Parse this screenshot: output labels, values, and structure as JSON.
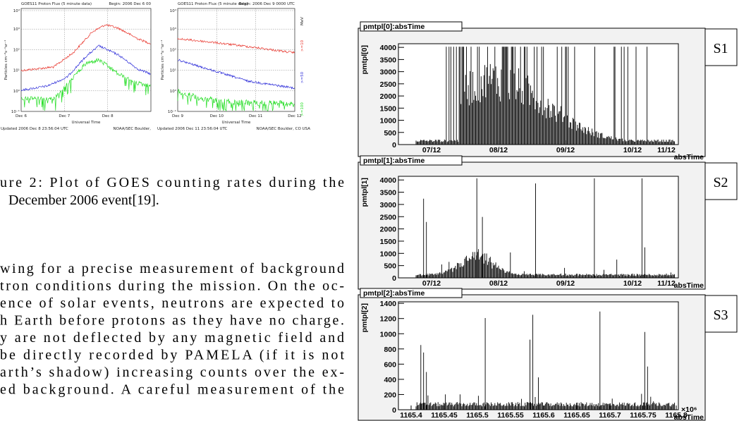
{
  "goes_figure": {
    "panels": [
      {
        "title": "GOES11 Proton Flux (5 minute data)",
        "begin": "Begin: 2006 Dec 6 00",
        "y_label": "Particles cm⁻²s⁻¹sr⁻¹",
        "y_ticks": [
          "10⁴",
          "10³",
          "10²",
          "10¹",
          "10⁰",
          "10⁻¹"
        ],
        "x_labels": [
          "Dec 6",
          "Dec 7",
          "Dec 8"
        ],
        "x_title": "Universal Time",
        "updated": "Updated 2006 Dec 8 23:56:04 UTC",
        "credit": "NOAA/SEC Boulder,"
      },
      {
        "title": "GOES11 Proton Flux (5 minute data)",
        "begin": "Begin: 2006 Dec 9 0000 UTC",
        "y_label": "Particles cm⁻²s⁻¹sr⁻¹",
        "y_ticks": [
          "10⁴",
          "10³",
          "10²",
          "10¹",
          "10⁰",
          "10⁻¹"
        ],
        "x_labels": [
          "Dec 9",
          "Dec 10",
          "Dec 11",
          "Dec 12"
        ],
        "x_title": "Universal Time",
        "updated": "Updated 2006 Dec 11 23:56:04 UTC",
        "credit": "NOAA/SEC Boulder, CO USA"
      }
    ],
    "unit": "MeV",
    "legend": [
      ">=10",
      ">=50",
      ">=100"
    ]
  },
  "caption": {
    "lines": [
      "ure 2: Plot of GOES counting rates during the",
      "December 2006 event[19]."
    ]
  },
  "body": {
    "lines": [
      "wing for a precise measurement of background",
      "tron conditions during the mission. On the oc-",
      "ence of solar events, neutrons are expected to",
      "h Earth before protons as they have no charge.",
      "y are not deflected by any magnetic field and",
      "be directly recorded by PAMELA (if it is not",
      "arth’s shadow) increasing counts over the ex-",
      "ed background. A careful measurement of the"
    ]
  },
  "root_panels": [
    {
      "title": "pmtpl[0]:absTime",
      "y_label": "pmtpl[0]",
      "y_ticks": [
        0,
        500,
        1000,
        1500,
        2000,
        2500,
        3000,
        3500,
        4000
      ],
      "x_ticks": [
        "07/12",
        "08/12",
        "09/12",
        "10/12",
        "11/12"
      ],
      "x_title": "absTime",
      "label": "S1"
    },
    {
      "title": "pmtpl[1]:absTime",
      "y_label": "pmtpl[1]",
      "y_ticks": [
        0,
        500,
        1000,
        1500,
        2000,
        2500,
        3000,
        3500,
        4000
      ],
      "x_ticks": [
        "07/12",
        "08/12",
        "09/12",
        "10/12",
        "11/12"
      ],
      "x_title": "absTime",
      "label": "S2"
    },
    {
      "title": "pmtpl[2]:absTime",
      "y_label": "pmtpl[2]",
      "y_ticks": [
        0,
        200,
        400,
        600,
        800,
        1000,
        1200,
        1400
      ],
      "x_ticks": [
        "1165.4",
        "1165.45",
        "1165.5",
        "1165.55",
        "1165.6",
        "1165.65",
        "1165.7",
        "1165.75",
        "1165.8"
      ],
      "x_title": "absTime",
      "exponent": "×10⁶",
      "label": "S3"
    }
  ]
}
